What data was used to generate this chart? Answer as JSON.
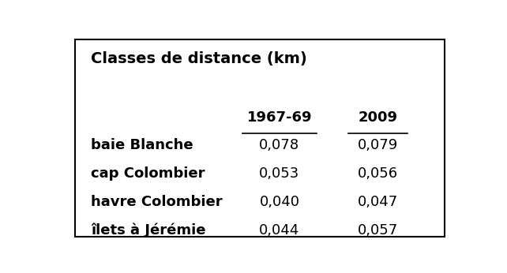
{
  "title": "Classes de distance (km)",
  "col_headers": [
    "1967-69",
    "2009"
  ],
  "row_labels": [
    "baie Blanche",
    "cap Colombier",
    "havre Colombier",
    "îlets à Jérémie"
  ],
  "values": [
    [
      "0,078",
      "0,079"
    ],
    [
      "0,053",
      "0,056"
    ],
    [
      "0,040",
      "0,047"
    ],
    [
      "0,044",
      "0,057"
    ]
  ],
  "bg_color": "#ffffff",
  "border_color": "#000000",
  "text_color": "#000000",
  "title_fontsize": 14,
  "header_fontsize": 13,
  "row_label_fontsize": 13,
  "value_fontsize": 13
}
